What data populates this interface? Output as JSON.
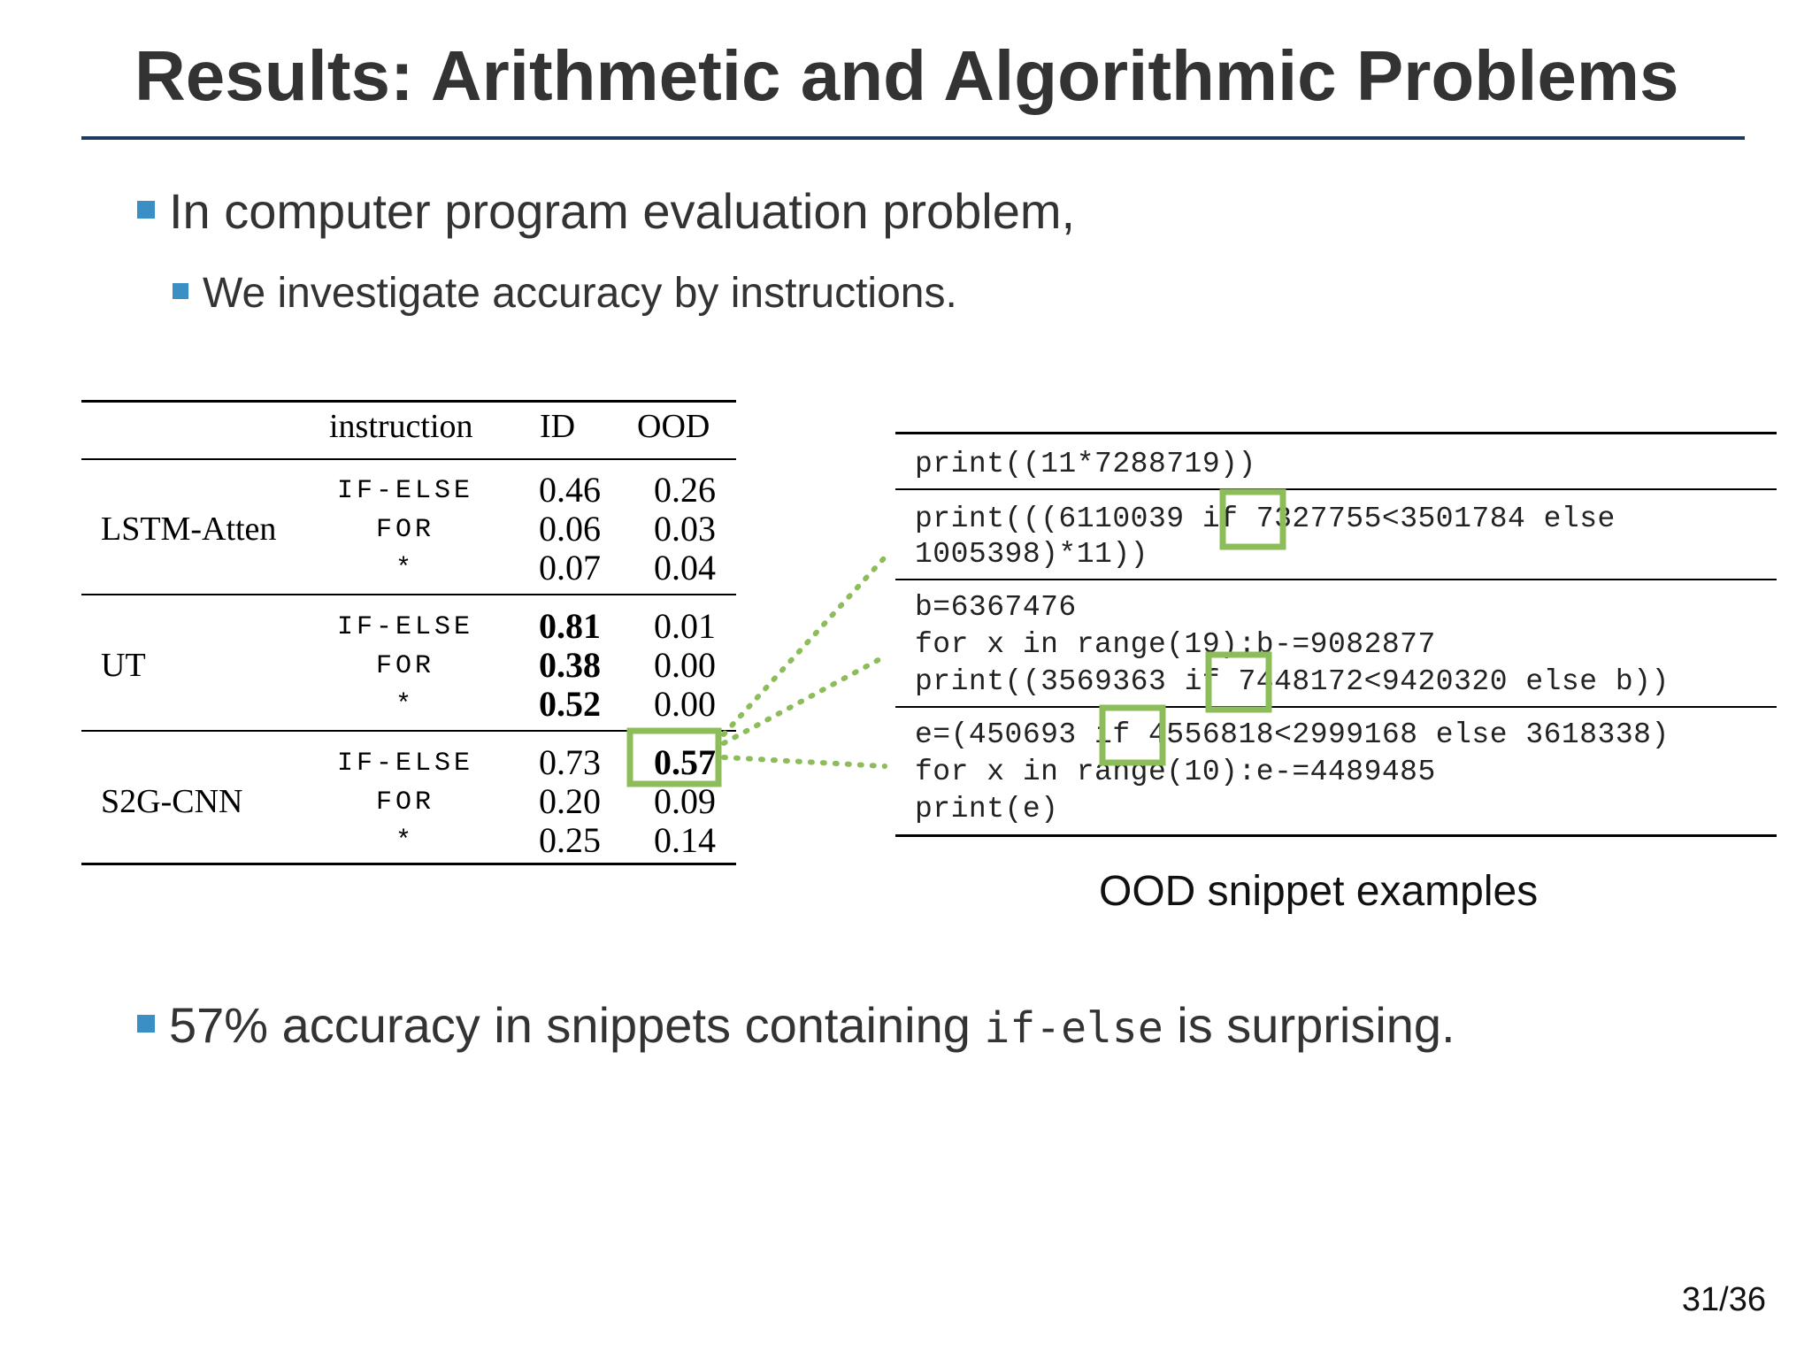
{
  "title": "Results: Arithmetic and Algorithmic Problems",
  "bullets": {
    "b1": "In computer program evaluation problem,",
    "b2": "We investigate accuracy by instructions.",
    "b3_pre": "57% accuracy in snippets containing ",
    "b3_code": "if-else",
    "b3_post": " is surprising."
  },
  "table": {
    "headers": {
      "instruction": "instruction",
      "id": "ID",
      "ood": "OOD"
    },
    "models": [
      {
        "name": "LSTM-Atten",
        "rows": [
          {
            "instr": "IF-ELSE",
            "id": "0.46",
            "ood": "0.26"
          },
          {
            "instr": "FOR",
            "id": "0.06",
            "ood": "0.03"
          },
          {
            "instr": "*",
            "id": "0.07",
            "ood": "0.04"
          }
        ]
      },
      {
        "name": "UT",
        "rows": [
          {
            "instr": "IF-ELSE",
            "id": "0.81",
            "ood": "0.01"
          },
          {
            "instr": "FOR",
            "id": "0.38",
            "ood": "0.00"
          },
          {
            "instr": "*",
            "id": "0.52",
            "ood": "0.00"
          }
        ]
      },
      {
        "name": "S2G-CNN",
        "rows": [
          {
            "instr": "IF-ELSE",
            "id": "0.73",
            "ood": "0.57"
          },
          {
            "instr": "FOR",
            "id": "0.20",
            "ood": "0.09"
          },
          {
            "instr": "*",
            "id": "0.25",
            "ood": "0.14"
          }
        ]
      }
    ]
  },
  "snippets": {
    "s1": {
      "l1": "print((11*7288719))"
    },
    "s2": {
      "l1_pre": "print(((6110039 ",
      "l1_kw": "if",
      "l1_post": " 7327755<3501784 else",
      "l2": "1005398)*11))"
    },
    "s3": {
      "l1": "b=6367476",
      "l2": "for x in range(19):b-=9082877",
      "l3_pre": "print((3569363 ",
      "l3_kw": "if",
      "l3_post": " 7448172<9420320 else b))"
    },
    "s4": {
      "l1_pre": "e=(450693 ",
      "l1_kw": "if",
      "l1_post": " 4556818<2999168 else 3618338)",
      "l2": "for x in range(10):e-=4489485",
      "l3": "print(e)"
    }
  },
  "caption": "OOD snippet examples",
  "page_number": "31/36",
  "colors": {
    "highlight": "#8dbd5a",
    "bullet": "#3a8fc4",
    "title_rule": "#1f3a60"
  }
}
